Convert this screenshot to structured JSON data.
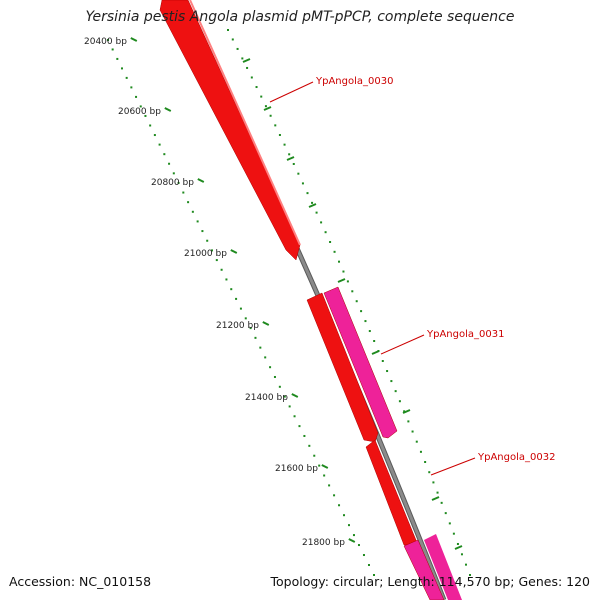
{
  "title": "Yersinia pestis Angola plasmid pMT-pPCP, complete sequence",
  "footer": {
    "accession": "Accession: NC_010158",
    "summary": "Topology: circular; Length: 114,570 bp; Genes: 120"
  },
  "ticks": [
    {
      "bp": 20400,
      "label": "20400 bp"
    },
    {
      "bp": 20600,
      "label": "20600 bp"
    },
    {
      "bp": 20800,
      "label": "20800 bp"
    },
    {
      "bp": 21000,
      "label": "21000 bp"
    },
    {
      "bp": 21200,
      "label": "21200 bp"
    },
    {
      "bp": 21400,
      "label": "21400 bp"
    },
    {
      "bp": 21600,
      "label": "21600 bp"
    },
    {
      "bp": 21800,
      "label": "21800 bp"
    }
  ],
  "genes": [
    {
      "name": "YpAngola_0030",
      "track": "inner",
      "color": "#ee1111"
    },
    {
      "name": "YpAngola_0031",
      "track": "outer",
      "color": "#ee2299"
    },
    {
      "name": "YpAngola_0032",
      "track": "inner",
      "color": "#ee1111"
    },
    {
      "name": "",
      "track": "inner",
      "color": "#ee1111"
    },
    {
      "name": "",
      "track": "outer",
      "color": "#ee2299"
    }
  ],
  "colors": {
    "backbone": "#8a8a8a",
    "tick": "#1f8a1f",
    "gene_label": "#cc0000"
  }
}
